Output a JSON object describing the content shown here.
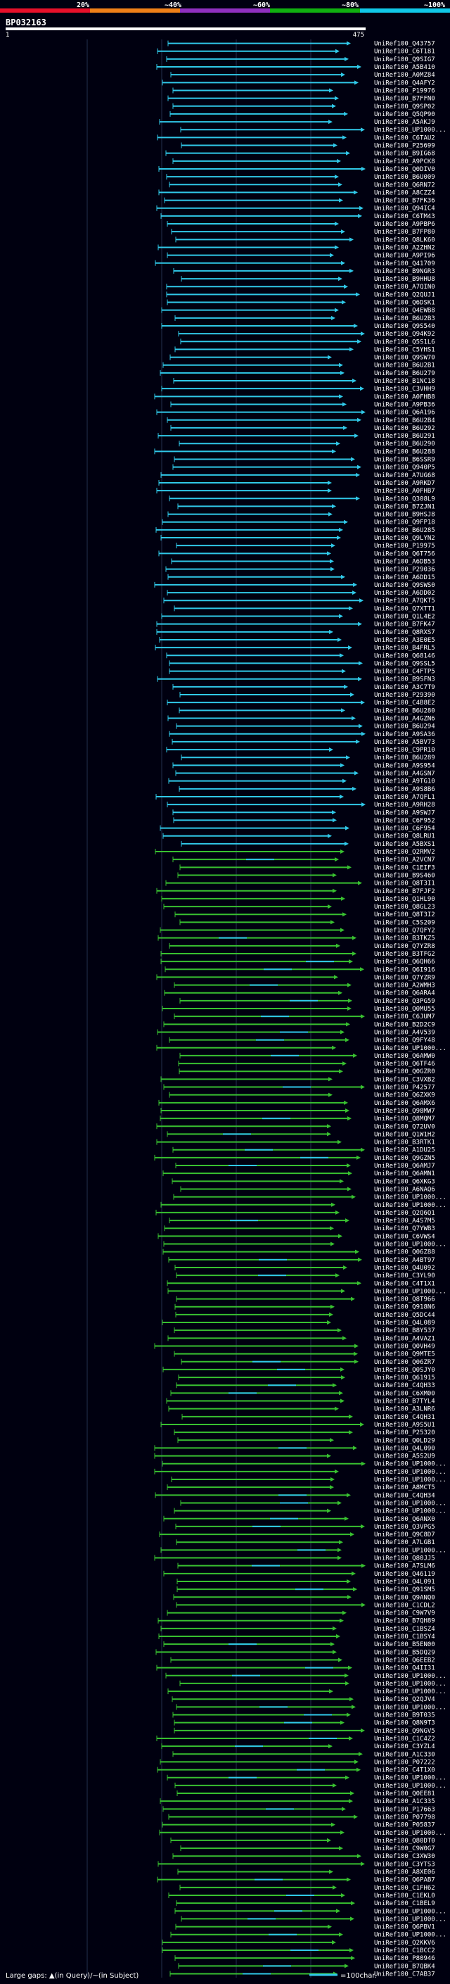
{
  "header": {
    "title": "BP032163",
    "range_start": "1",
    "range_end": "475",
    "identity_scale": [
      {
        "label": "20%",
        "color": "#e8102a"
      },
      {
        "label": "~40%",
        "color": "#f08018"
      },
      {
        "label": "~60%",
        "color": "#9030c0"
      },
      {
        "label": "~80%",
        "color": "#10b010"
      },
      {
        "label": "~100%",
        "color": "#10c8e8"
      }
    ]
  },
  "colors": {
    "cyan": "#30c8e8",
    "green": "#38c030",
    "background": "#000010",
    "grid": "#23304e"
  },
  "hits": {
    "cyan": [
      "UniRef100_Q43757",
      "UniRef100_C6T181",
      "UniRef100_Q9SIG7",
      "UniRef100_A5B410",
      "UniRef100_A0MZ84",
      "UniRef100_Q4AFY2",
      "UniRef100_P19976",
      "UniRef100_B7FFN0",
      "UniRef100_Q9SP02",
      "UniRef100_Q5QP90",
      "UniRef100_A5AKJ9",
      "UniRef100_UP1000...",
      "UniRef100_C6TAU2",
      "UniRef100_P25699",
      "UniRef100_B9IG68",
      "UniRef100_A9PCK8",
      "UniRef100_Q0DIV0",
      "UniRef100_B6U009",
      "UniRef100_Q6RN72",
      "UniRef100_A8CZZ4",
      "UniRef100_B7FK36",
      "UniRef100_Q94IC4",
      "UniRef100_C6TM43",
      "UniRef100_A9PBP6",
      "UniRef100_B7FP80",
      "UniRef100_Q8LK60",
      "UniRef100_A2ZHN2",
      "UniRef100_A9PI96",
      "UniRef100_Q41709",
      "UniRef100_B9NGR3",
      "UniRef100_B9HHU8",
      "UniRef100_A7QIN0",
      "UniRef100_Q2QUJ1",
      "UniRef100_Q6DSK1",
      "UniRef100_Q4EWB8",
      "UniRef100_B6U2B3",
      "UniRef100_Q9S540",
      "UniRef100_Q94K92",
      "UniRef100_Q5S1L6",
      "UniRef100_C5YHS1",
      "UniRef100_Q9SW70",
      "UniRef100_B6U2B1",
      "UniRef100_B6U279",
      "UniRef100_B1NC18",
      "UniRef100_C3VHH9",
      "UniRef100_A0FHB8",
      "UniRef100_A9PB36",
      "UniRef100_Q6A196",
      "UniRef100_B6U2B4",
      "UniRef100_B6U292",
      "UniRef100_B6U291",
      "UniRef100_B6U290",
      "UniRef100_B6U288",
      "UniRef100_B6SSR9",
      "UniRef100_Q940P5",
      "UniRef100_A7UG68",
      "UniRef100_A9RKD7",
      "UniRef100_A0FHB7",
      "UniRef100_Q308L9",
      "UniRef100_B7ZJN1",
      "UniRef100_B9HSJ8",
      "UniRef100_Q9FP18",
      "UniRef100_B6U285",
      "UniRef100_Q9LYN2",
      "UniRef100_P19975",
      "UniRef100_Q6T756",
      "UniRef100_A6DB53",
      "UniRef100_P29036",
      "UniRef100_A6DD15",
      "UniRef100_Q9SWS0",
      "UniRef100_A6DD02",
      "UniRef100_A7QKT5",
      "UniRef100_Q7XTT1",
      "UniRef100_Q1L4E2",
      "UniRef100_B7FK47",
      "UniRef100_Q8RXS7",
      "UniRef100_A3E0E5",
      "UniRef100_B4FRL5",
      "UniRef100_Q68146",
      "UniRef100_Q9SSL5",
      "UniRef100_C4FTP5",
      "UniRef100_B9SFN3",
      "UniRef100_A3C7T9",
      "UniRef100_P29390",
      "UniRef100_C4B8E2",
      "UniRef100_B6U280",
      "UniRef100_A4GZN6",
      "UniRef100_B6U294",
      "UniRef100_A9SA36",
      "UniRef100_A5BV73",
      "UniRef100_C9PR10",
      "UniRef100_B6U289",
      "UniRef100_A9S954",
      "UniRef100_A4GSN7",
      "UniRef100_A9TG10",
      "UniRef100_A9S8B6",
      "UniRef100_A7QFL1",
      "UniRef100_A9RH28",
      "UniRef100_A9SWJ7",
      "UniRef100_C6F952",
      "UniRef100_C6F954",
      "UniRef100_Q8LRU1",
      "UniRef100_A5BXS1"
    ],
    "mixed": [
      "UniRef100_Q2RMV2",
      "UniRef100_A2VCN7",
      "UniRef100_C1EIF3",
      "UniRef100_B9S460",
      "UniRef100_Q8T3I1",
      "UniRef100_B7FJF2",
      "UniRef100_Q1HL90",
      "UniRef100_Q8GL23",
      "UniRef100_Q8T3I2",
      "UniRef100_C5S209",
      "UniRef100_Q7QFY2",
      "UniRef100_B3TKZ5",
      "UniRef100_Q7YZR8",
      "UniRef100_B3TFG2",
      "UniRef100_Q6QH66",
      "UniRef100_Q6I916",
      "UniRef100_Q7YZR9",
      "UniRef100_A2WMH3",
      "UniRef100_Q6ARA4",
      "UniRef100_Q3PG59",
      "UniRef100_Q0MU55",
      "UniRef100_C6JUM7",
      "UniRef100_B2D2C9",
      "UniRef100_A4V539",
      "UniRef100_Q9FY48",
      "UniRef100_UP1000...",
      "UniRef100_Q6AMW0",
      "UniRef100_Q6TF46",
      "UniRef100_Q0GZR0",
      "UniRef100_C3VXB2",
      "UniRef100_P42577",
      "UniRef100_Q6ZXK9",
      "UniRef100_Q6AMX6",
      "UniRef100_Q98MW7",
      "UniRef100_Q8MQM7",
      "UniRef100_Q72UV0",
      "UniRef100_Q1W1H2",
      "UniRef100_B3RTK1",
      "UniRef100_A1DU25",
      "UniRef100_Q9GZN5",
      "UniRef100_Q6AMJ7",
      "UniRef100_Q6AMN1",
      "UniRef100_Q6XKG3",
      "UniRef100_A6NAQ6",
      "UniRef100_UP1000...",
      "UniRef100_UP1000...",
      "UniRef100_Q2Q6Q1",
      "UniRef100_A4S7M5",
      "UniRef100_Q7YWB3",
      "UniRef100_C6VWS4",
      "UniRef100_UP1000...",
      "UniRef100_Q06Z88",
      "UniRef100_A4BT97",
      "UniRef100_Q4U092",
      "UniRef100_C3YL90",
      "UniRef100_C4T1X1",
      "UniRef100_UP1000...",
      "UniRef100_Q8T966",
      "UniRef100_Q918N6",
      "UniRef100_Q5DC44",
      "UniRef100_Q4L089",
      "UniRef100_B8Y537",
      "UniRef100_A4VAZ1",
      "UniRef100_Q0VH49",
      "UniRef100_Q9MTE5",
      "UniRef100_Q06ZR7",
      "UniRef100_Q0SJY0",
      "UniRef100_Q61915",
      "UniRef100_C4QH33",
      "UniRef100_C6XM00",
      "UniRef100_B7TYL4",
      "UniRef100_A3LNR6",
      "UniRef100_C4QH31",
      "UniRef100_A9S5U1",
      "UniRef100_P25320",
      "UniRef100_Q0LD29",
      "UniRef100_Q4L090",
      "UniRef100_A5S2U9",
      "UniRef100_UP1000...",
      "UniRef100_UP1000...",
      "UniRef100_UP1000...",
      "UniRef100_A8MCT5",
      "UniRef100_C4QH34",
      "UniRef100_UP1000...",
      "UniRef100_UP1000...",
      "UniRef100_Q6ANX0",
      "UniRef100_Q3VPG5",
      "UniRef100_Q9C8D7",
      "UniRef100_A7LGB1",
      "UniRef100_UP1000...",
      "UniRef100_Q80JJ5",
      "UniRef100_A7SLM6",
      "UniRef100_Q46119",
      "UniRef100_Q4L091",
      "UniRef100_Q91SM5",
      "UniRef100_Q9ANQ0",
      "UniRef100_C1CDL2",
      "UniRef100_C9W7V9",
      "UniRef100_B7QH89",
      "UniRef100_C1BSZ4",
      "UniRef100_C1BSY4",
      "UniRef100_B5EN00",
      "UniRef100_B5DQ29",
      "UniRef100_Q6EEB2",
      "UniRef100_Q4II31",
      "UniRef100_UP1000...",
      "UniRef100_UP1000...",
      "UniRef100_UP1000...",
      "UniRef100_Q2QJV4",
      "UniRef100_UP1000...",
      "UniRef100_B9T035",
      "UniRef100_Q8N9T3",
      "UniRef100_Q9NGV5",
      "UniRef100_C1C4Z2",
      "UniRef100_C3YZL4",
      "UniRef100_A1C330",
      "UniRef100_P07222",
      "UniRef100_C4T1X0",
      "UniRef100_UP1000...",
      "UniRef100_UP1000...",
      "UniRef100_Q0EE81",
      "UniRef100_A1C335",
      "UniRef100_P17663",
      "UniRef100_P07798",
      "UniRef100_P05837",
      "UniRef100_UP1000...",
      "UniRef100_Q80DT0",
      "UniRef100_C9W0G7",
      "UniRef100_C3XW30",
      "UniRef100_C3YTS3",
      "UniRef100_A8XE06",
      "UniRef100_Q6PAB7",
      "UniRef100_C1FH62",
      "UniRef100_C1EKL0",
      "UniRef100_C1BEL9",
      "UniRef100_UP1000...",
      "UniRef100_UP1000...",
      "UniRef100_Q6PBV1",
      "UniRef100_UP1000...",
      "UniRef100_Q2KKV6",
      "UniRef100_C1BCC2",
      "UniRef100_P80946",
      "UniRef100_B7QBK4",
      "UniRef100_C7AB37"
    ]
  },
  "footer": {
    "gap_text": "Large gaps: ▲(in Query)/~(in Subject)",
    "scale_text": "=100char."
  }
}
